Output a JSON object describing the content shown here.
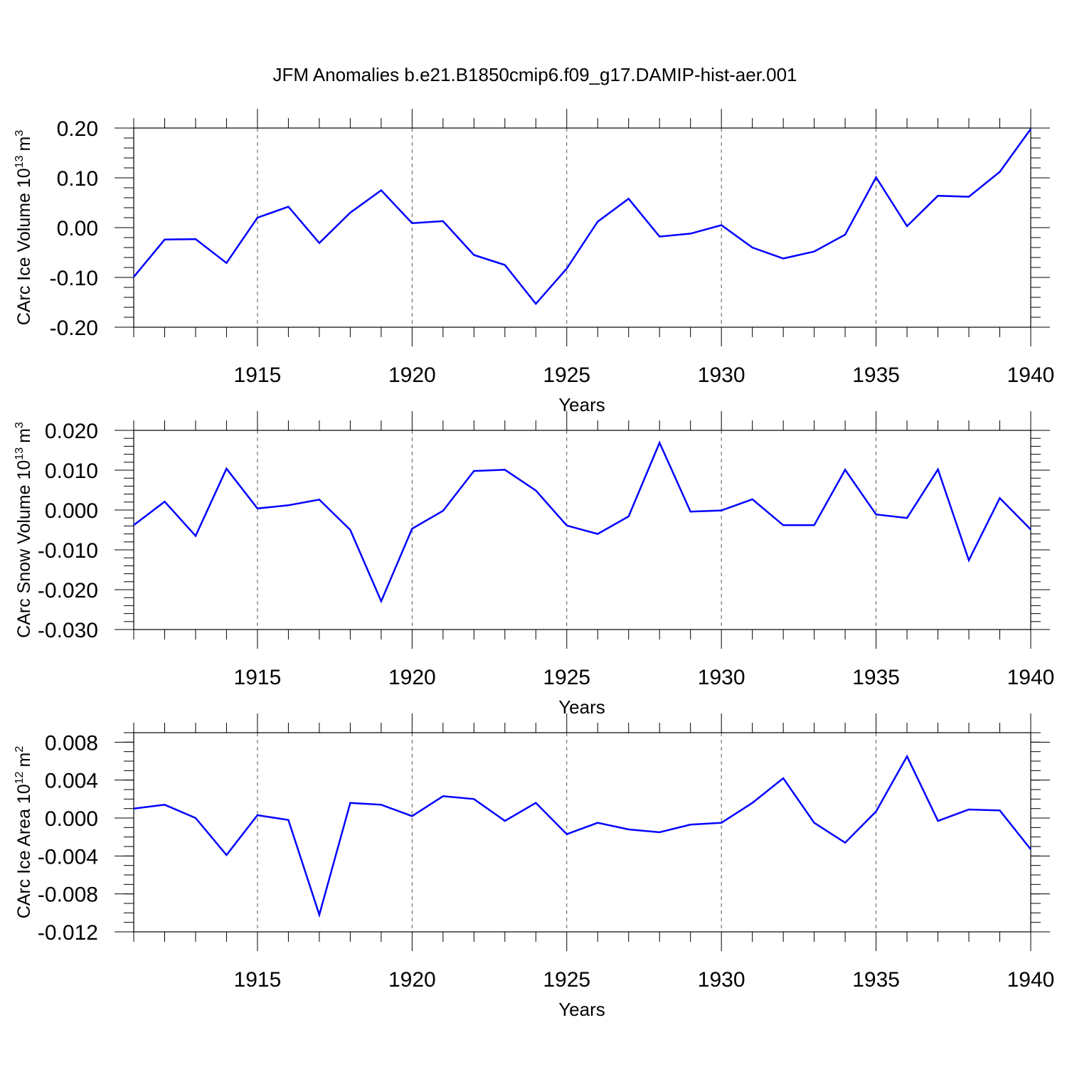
{
  "title": "JFM Anomalies b.e21.B1850cmip6.f09_g17.DAMIP-hist-aer.001",
  "line_color": "#0000ff",
  "chart_data": [
    {
      "type": "line",
      "ylabel": "CArc Ice Volume 10",
      "ylabel_exp": "13",
      "ylabel_unit": "m",
      "ylabel_unit_exp": "3",
      "xlabel": "Years",
      "xlim": [
        1911,
        1940
      ],
      "ylim": [
        -0.2,
        0.2
      ],
      "x_ticks": [
        "1915",
        "1920",
        "1925",
        "1930",
        "1935",
        "1940"
      ],
      "y_ticks": [
        "0.20",
        "0.10",
        "0.00",
        "-0.10",
        "-0.20"
      ],
      "y_tick_values": [
        0.2,
        0.1,
        0.0,
        -0.1,
        -0.2
      ],
      "y_minor_step": 0.02,
      "grid": "vertical dashed at major x ticks",
      "x": [
        1911,
        1912,
        1913,
        1914,
        1915,
        1916,
        1917,
        1918,
        1919,
        1920,
        1921,
        1922,
        1923,
        1924,
        1925,
        1926,
        1927,
        1928,
        1929,
        1930,
        1931,
        1932,
        1933,
        1934,
        1935,
        1936,
        1937,
        1938,
        1939,
        1940
      ],
      "values": [
        -0.099,
        -0.024,
        -0.023,
        -0.071,
        0.02,
        0.042,
        -0.031,
        0.03,
        0.075,
        0.009,
        0.013,
        -0.055,
        -0.075,
        -0.153,
        -0.082,
        0.012,
        0.058,
        -0.018,
        -0.012,
        0.005,
        -0.04,
        -0.062,
        -0.048,
        -0.014,
        0.101,
        0.003,
        0.064,
        0.062,
        0.112,
        0.198
      ]
    },
    {
      "type": "line",
      "ylabel": "CArc Snow Volume 10",
      "ylabel_exp": "13",
      "ylabel_unit": "m",
      "ylabel_unit_exp": "3",
      "xlabel": "Years",
      "xlim": [
        1911,
        1940
      ],
      "ylim": [
        -0.03,
        0.02
      ],
      "x_ticks": [
        "1915",
        "1920",
        "1925",
        "1930",
        "1935",
        "1940"
      ],
      "y_ticks": [
        "0.020",
        "0.010",
        "0.000",
        "-0.010",
        "-0.020",
        "-0.030"
      ],
      "y_tick_values": [
        0.02,
        0.01,
        0.0,
        -0.01,
        -0.02,
        -0.03
      ],
      "y_minor_step": 0.002,
      "grid": "vertical dashed at major x ticks",
      "x": [
        1911,
        1912,
        1913,
        1914,
        1915,
        1916,
        1917,
        1918,
        1919,
        1920,
        1921,
        1922,
        1923,
        1924,
        1925,
        1926,
        1927,
        1928,
        1929,
        1930,
        1931,
        1932,
        1933,
        1934,
        1935,
        1936,
        1937,
        1938,
        1939,
        1940
      ],
      "values": [
        -0.0038,
        0.0021,
        -0.0065,
        0.0104,
        0.0004,
        0.0012,
        0.0026,
        -0.005,
        -0.0229,
        -0.0047,
        -0.0002,
        0.0098,
        0.0101,
        0.0049,
        -0.0039,
        -0.006,
        -0.0016,
        0.0169,
        -0.0004,
        -0.0001,
        0.0027,
        -0.0038,
        -0.0038,
        0.0101,
        -0.0011,
        -0.002,
        0.0102,
        -0.0126,
        0.003,
        -0.0049
      ]
    },
    {
      "type": "line",
      "ylabel": "CArc Ice Area 10",
      "ylabel_exp": "12",
      "ylabel_unit": "m",
      "ylabel_unit_exp": "2",
      "xlabel": "Years",
      "xlim": [
        1911,
        1940
      ],
      "ylim": [
        -0.012,
        0.009
      ],
      "x_ticks": [
        "1915",
        "1920",
        "1925",
        "1930",
        "1935",
        "1940"
      ],
      "y_ticks": [
        "0.008",
        "0.004",
        "0.000",
        "-0.004",
        "-0.008",
        "-0.012"
      ],
      "y_tick_values": [
        0.008,
        0.004,
        0.0,
        -0.004,
        -0.008,
        -0.012
      ],
      "y_minor_step": 0.001,
      "grid": "vertical dashed at major x ticks",
      "x": [
        1911,
        1912,
        1913,
        1914,
        1915,
        1916,
        1917,
        1918,
        1919,
        1920,
        1921,
        1922,
        1923,
        1924,
        1925,
        1926,
        1927,
        1928,
        1929,
        1930,
        1931,
        1932,
        1933,
        1934,
        1935,
        1936,
        1937,
        1938,
        1939,
        1940
      ],
      "values": [
        0.001,
        0.0014,
        0.0,
        -0.0039,
        0.0003,
        -0.0002,
        -0.0102,
        0.0016,
        0.0014,
        0.0002,
        0.0023,
        0.002,
        -0.0003,
        0.0016,
        -0.0017,
        -0.0005,
        -0.0012,
        -0.0015,
        -0.0007,
        -0.0005,
        0.0016,
        0.0042,
        -0.0005,
        -0.0026,
        0.0007,
        0.0065,
        -0.0003,
        0.0009,
        0.0008,
        -0.0033
      ]
    }
  ]
}
